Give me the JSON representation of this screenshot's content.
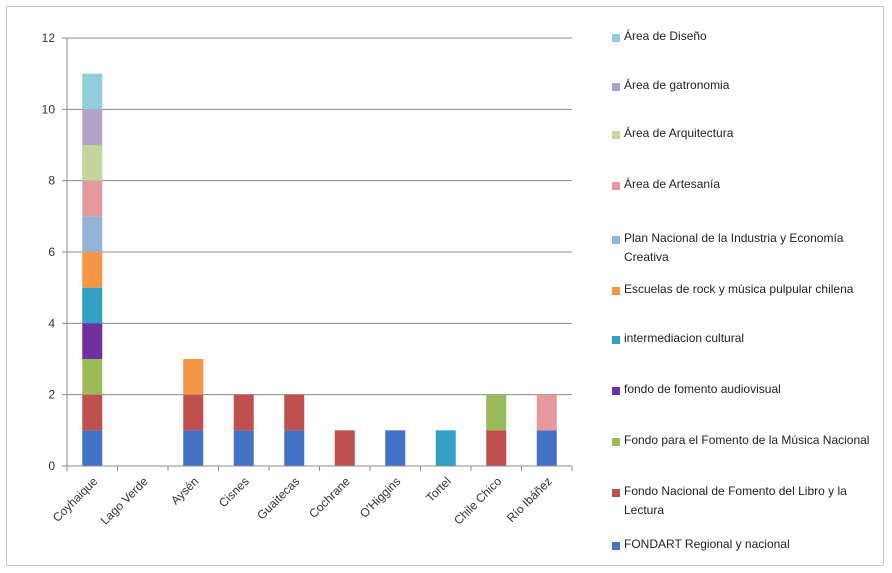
{
  "chart_data": {
    "type": "bar",
    "stacked": true,
    "categories": [
      "Coyhaique",
      "Lago Verde",
      "Aysén",
      "Cisnes",
      "Guaitecas",
      "Cochrane",
      "O'Higgins",
      "Tortel",
      "Chile Chico",
      "Río Ibáñez"
    ],
    "ylim": [
      0,
      12
    ],
    "yticks": [
      0,
      2,
      4,
      6,
      8,
      10,
      12
    ],
    "grid": true,
    "legend_position": "right",
    "series": [
      {
        "name": "FONDART Regional y nacional",
        "color": "#4472C4",
        "values": [
          1,
          0,
          1,
          1,
          1,
          0,
          1,
          0,
          0,
          1
        ]
      },
      {
        "name": "Fondo Nacional de Fomento del Libro y la Lectura",
        "color": "#C0504D",
        "values": [
          1,
          0,
          1,
          1,
          1,
          1,
          0,
          0,
          1,
          0
        ]
      },
      {
        "name": "Fondo para el Fomento de la Música Nacional",
        "color": "#9BBB59",
        "values": [
          1,
          0,
          0,
          0,
          0,
          0,
          0,
          0,
          1,
          0
        ]
      },
      {
        "name": "fondo de fomento audiovisual",
        "color": "#7030A0",
        "values": [
          1,
          0,
          0,
          0,
          0,
          0,
          0,
          0,
          0,
          0
        ]
      },
      {
        "name": "intermediacion cultural",
        "color": "#31A0C4",
        "values": [
          1,
          0,
          0,
          0,
          0,
          0,
          0,
          1,
          0,
          0
        ]
      },
      {
        "name": "Escuelas de rock y música pulpular chilena",
        "color": "#F79646",
        "values": [
          1,
          0,
          1,
          0,
          0,
          0,
          0,
          0,
          0,
          0
        ]
      },
      {
        "name": "Plan Nacional de la Industria y Economía Creativa",
        "color": "#95B3D7",
        "values": [
          1,
          0,
          0,
          0,
          0,
          0,
          0,
          0,
          0,
          0
        ]
      },
      {
        "name": "Área de Artesanía",
        "color": "#E6999C",
        "values": [
          1,
          0,
          0,
          0,
          0,
          0,
          0,
          0,
          0,
          1
        ]
      },
      {
        "name": "Área de Arquitectura",
        "color": "#C3D69B",
        "values": [
          1,
          0,
          0,
          0,
          0,
          0,
          0,
          0,
          0,
          0
        ]
      },
      {
        "name": "Área de gatronomia",
        "color": "#B3A2C7",
        "values": [
          1,
          0,
          0,
          0,
          0,
          0,
          0,
          0,
          0,
          0
        ]
      },
      {
        "name": "Área de Diseño",
        "color": "#92CDDC",
        "values": [
          1,
          0,
          0,
          0,
          0,
          0,
          0,
          0,
          0,
          0
        ]
      }
    ]
  }
}
